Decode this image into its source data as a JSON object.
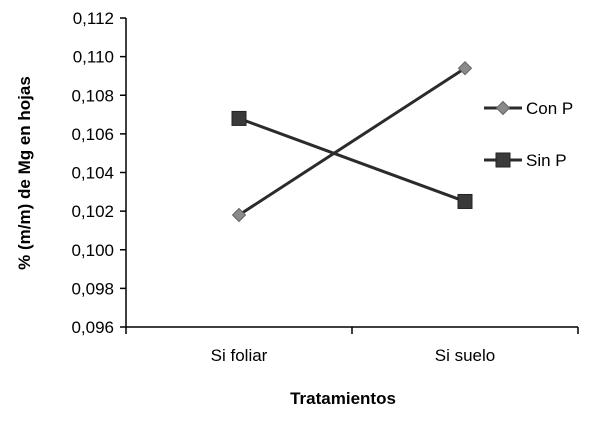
{
  "chart_data": {
    "type": "line",
    "title": "",
    "xlabel": "Tratamientos",
    "ylabel": "% (m/m) de Mg en hojas",
    "categories": [
      "Si foliar",
      "Si suelo"
    ],
    "ylim": [
      0.096,
      0.112
    ],
    "yticks": [
      "0,096",
      "0,098",
      "0,100",
      "0,102",
      "0,104",
      "0,106",
      "0,108",
      "0,110",
      "0,112"
    ],
    "grid": false,
    "legend_position": "right",
    "series": [
      {
        "name": "Con P",
        "marker": "diamond",
        "color": "#2b2b2b",
        "marker_color": "#8a8a8a",
        "values": [
          0.1018,
          0.1094
        ]
      },
      {
        "name": "Sin P",
        "marker": "square",
        "color": "#2b2b2b",
        "marker_color": "#3a3a3a",
        "values": [
          0.1068,
          0.1025
        ]
      }
    ]
  }
}
